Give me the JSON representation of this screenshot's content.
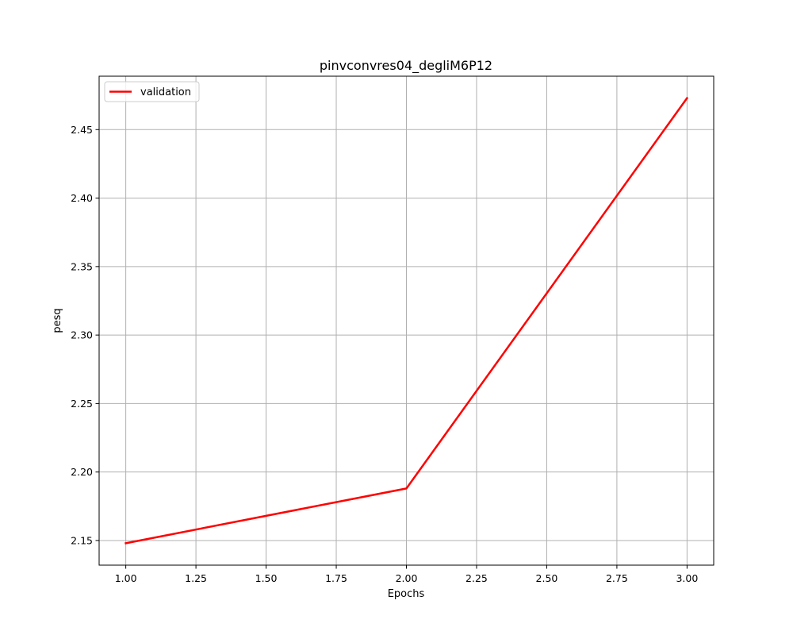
{
  "chart_data": {
    "type": "line",
    "title": "pinvconvres04_degliM6P12",
    "xlabel": "Epochs",
    "ylabel": "pesq",
    "xlim": [
      0.905,
      3.095
    ],
    "ylim": [
      2.132,
      2.489
    ],
    "xticks": [
      1.0,
      1.25,
      1.5,
      1.75,
      2.0,
      2.25,
      2.5,
      2.75,
      3.0
    ],
    "xtick_labels": [
      "1.00",
      "1.25",
      "1.50",
      "1.75",
      "2.00",
      "2.25",
      "2.50",
      "2.75",
      "3.00"
    ],
    "yticks": [
      2.15,
      2.2,
      2.25,
      2.3,
      2.35,
      2.4,
      2.45
    ],
    "ytick_labels": [
      "2.15",
      "2.20",
      "2.25",
      "2.30",
      "2.35",
      "2.40",
      "2.45"
    ],
    "grid": true,
    "legend_position": "upper-left",
    "series": [
      {
        "name": "validation",
        "color": "#ff0000",
        "x": [
          1,
          2,
          3
        ],
        "y": [
          2.148,
          2.188,
          2.473
        ]
      }
    ]
  }
}
